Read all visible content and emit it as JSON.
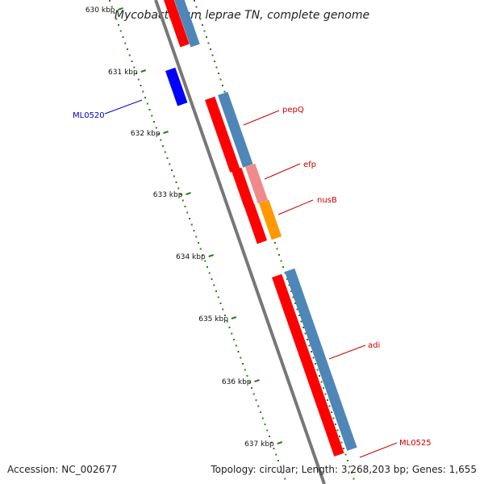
{
  "title": "Mycobacterium leprae TN, complete genome",
  "footer": {
    "accession": "Accession: NC_002677",
    "summary": "Topology: circular; Length: 3,268,203 bp; Genes: 1,655"
  },
  "ruler_ticks": [
    "630 kbp",
    "631 kbp",
    "632 kbp",
    "633 kbp",
    "634 kbp",
    "635 kbp",
    "636 kbp",
    "637 kbp"
  ],
  "gene_labels": [
    {
      "text": "ML0520",
      "color": "#0000cc"
    },
    {
      "text": "pepQ",
      "color": "#cc0000"
    },
    {
      "text": "efp",
      "color": "#cc0000"
    },
    {
      "text": "nusB",
      "color": "#cc0000"
    },
    {
      "text": "adi",
      "color": "#cc0000"
    },
    {
      "text": "ML0525",
      "color": "#cc0000"
    }
  ],
  "colors": {
    "backbone": "#777777",
    "gene_red": "#ff0000",
    "gene_blue": "#0000ff",
    "cds_blue": "#4f86b8",
    "rrna_pink": "#f08a8a",
    "trna_orange": "#ff9900",
    "tick_green": "#2e7d1a"
  }
}
